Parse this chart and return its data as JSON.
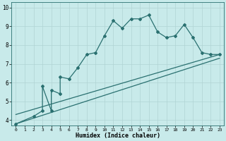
{
  "title": "",
  "xlabel": "Humidex (Indice chaleur)",
  "ylabel": "",
  "bg_color": "#c8eaea",
  "grid_color": "#b0d4d4",
  "line_color": "#2a7070",
  "marker": "D",
  "markersize": 2.0,
  "linewidth": 0.9,
  "xlim": [
    -0.5,
    23.5
  ],
  "ylim": [
    3.7,
    10.3
  ],
  "xticks": [
    0,
    1,
    2,
    3,
    4,
    5,
    6,
    7,
    8,
    9,
    10,
    11,
    12,
    13,
    14,
    15,
    16,
    17,
    18,
    19,
    20,
    21,
    22,
    23
  ],
  "yticks": [
    4,
    5,
    6,
    7,
    8,
    9,
    10
  ],
  "line1_x": [
    0,
    2,
    3,
    3,
    4,
    4,
    5,
    5,
    6,
    7,
    8,
    9,
    10,
    11,
    12,
    13,
    14,
    15,
    16,
    17,
    18,
    19,
    20,
    21,
    22,
    23
  ],
  "line1_y": [
    3.8,
    4.2,
    4.5,
    5.8,
    4.5,
    5.6,
    5.4,
    6.3,
    6.2,
    6.8,
    7.5,
    7.6,
    8.5,
    9.3,
    8.9,
    9.4,
    9.4,
    9.6,
    8.7,
    8.4,
    8.5,
    9.1,
    8.4,
    7.6,
    7.5,
    7.5
  ],
  "line2_x": [
    0,
    23
  ],
  "line2_y": [
    4.3,
    7.5
  ],
  "line3_x": [
    0,
    23
  ],
  "line3_y": [
    3.8,
    7.3
  ],
  "xlabel_fontsize": 6.0,
  "xtick_fontsize": 4.5,
  "ytick_fontsize": 5.5
}
